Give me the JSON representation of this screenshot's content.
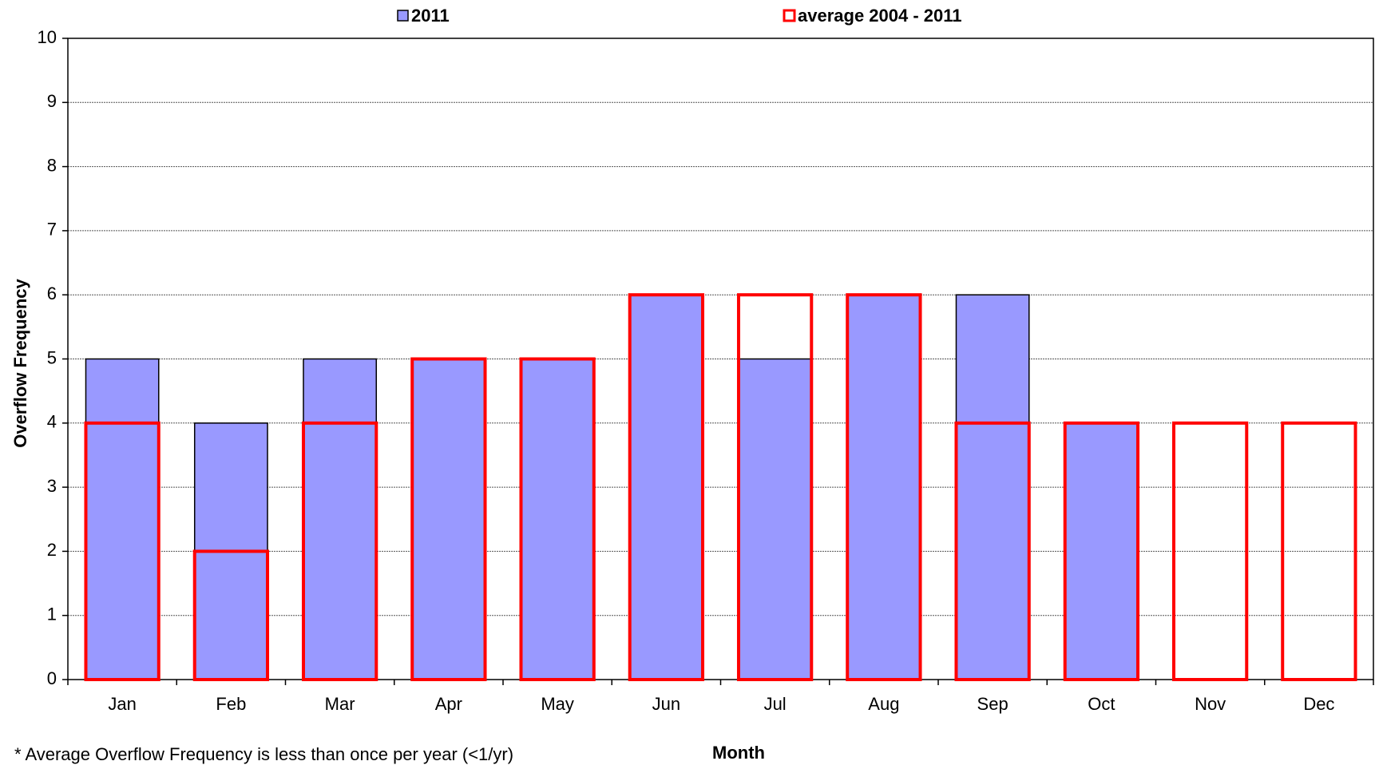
{
  "chart_data": {
    "type": "bar",
    "title": null,
    "x_label": "Month",
    "y_label": "Overflow Frequency",
    "note": "* Average Overflow Frequency is less than once per year (<1/yr)",
    "categories": [
      "Jan",
      "Feb",
      "Mar",
      "Apr",
      "May",
      "Jun",
      "Jul",
      "Aug",
      "Sep",
      "Oct",
      "Nov",
      "Dec"
    ],
    "series": [
      {
        "name": "2011",
        "color": "#9999ff",
        "values": [
          5,
          4,
          5,
          5,
          5,
          6,
          5,
          6,
          6,
          4,
          null,
          null
        ]
      },
      {
        "name": "average 2004 - 2011",
        "color": "#ff0000",
        "values": [
          4,
          2,
          4,
          5,
          5,
          6,
          6,
          6,
          4,
          4,
          4,
          4
        ]
      }
    ],
    "ylim": [
      0,
      10
    ],
    "yticks": [
      0,
      1,
      2,
      3,
      4,
      5,
      6,
      7,
      8,
      9,
      10
    ],
    "grid": true
  }
}
